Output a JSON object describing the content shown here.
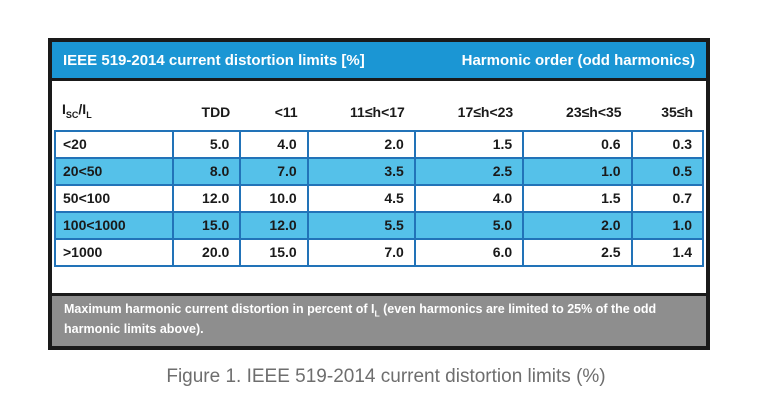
{
  "chart_data": {
    "type": "table",
    "title": "IEEE 519-2014 current distortion limits [%]",
    "column_group_title": "Harmonic order (odd harmonics)",
    "ratio_column": {
      "base1": "I",
      "sub1": "SC",
      "base2": "/I",
      "sub2": "L"
    },
    "columns": [
      "TDD",
      "<11",
      "11≤h<17",
      "17≤h<23",
      "23≤h<35",
      "35≤h"
    ],
    "rows": [
      {
        "label": "<20",
        "values": [
          "5.0",
          "4.0",
          "2.0",
          "1.5",
          "0.6",
          "0.3"
        ],
        "highlighted": false
      },
      {
        "label": "20<50",
        "values": [
          "8.0",
          "7.0",
          "3.5",
          "2.5",
          "1.0",
          "0.5"
        ],
        "highlighted": true
      },
      {
        "label": "50<100",
        "values": [
          "12.0",
          "10.0",
          "4.5",
          "4.0",
          "1.5",
          "0.7"
        ],
        "highlighted": false
      },
      {
        "label": "100<1000",
        "values": [
          "15.0",
          "12.0",
          "5.5",
          "5.0",
          "2.0",
          "1.0"
        ],
        "highlighted": true
      },
      {
        "label": ">1000",
        "values": [
          "20.0",
          "15.0",
          "7.0",
          "6.0",
          "2.5",
          "1.4"
        ],
        "highlighted": false
      }
    ],
    "footnote": {
      "part1": "Maximum harmonic current distortion in percent of I",
      "sub": "L",
      "part2": " (even harmonics are limited to 25% of the odd harmonic limits above)."
    }
  },
  "caption": "Figure 1. IEEE 519-2014 current distortion limits (%)",
  "colors": {
    "title_bar_blue": "#1b96d4",
    "row_highlight_blue": "#55c1e9",
    "row_border_blue": "#2273b8",
    "footnote_gray": "#8e8e8e",
    "border_black": "#1a1a1a",
    "caption_gray": "#6e6e6e"
  }
}
